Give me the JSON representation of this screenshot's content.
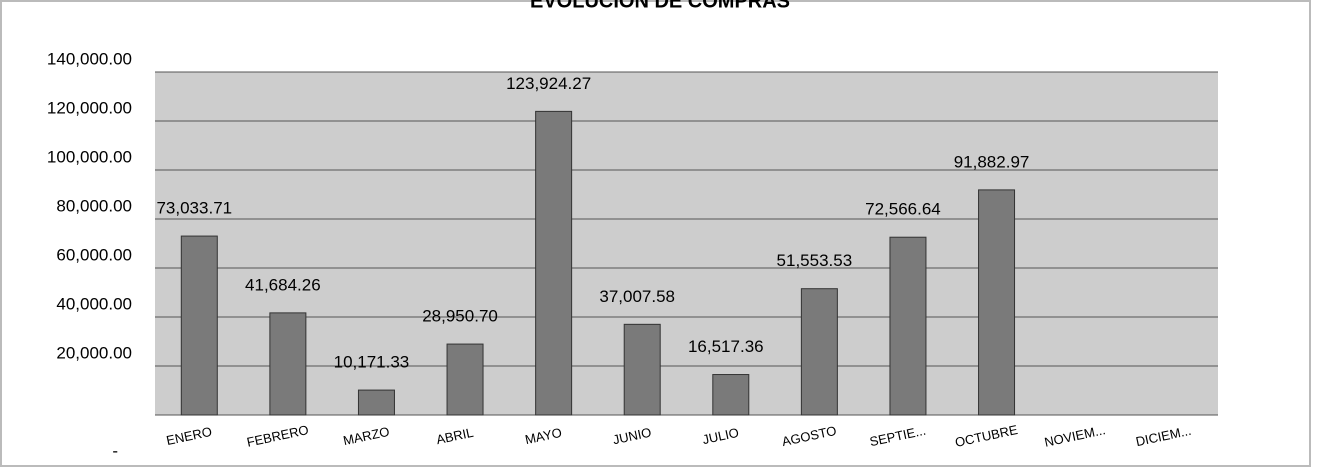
{
  "chart_data": {
    "type": "bar",
    "title": "EVOLUCION DE COMPRAS",
    "categories": [
      "ENERO",
      "FEBRERO",
      "MARZO",
      "ABRIL",
      "MAYO",
      "JUNIO",
      "JULIO",
      "AGOSTO",
      "SEPTIE...",
      "OCTUBRE",
      "NOVIEM...",
      "DICIEM..."
    ],
    "values": [
      73033.71,
      41684.26,
      10171.33,
      28950.7,
      123924.27,
      37007.58,
      16517.36,
      51553.53,
      72566.64,
      91882.97,
      null,
      null
    ],
    "value_labels": [
      "73,033.71",
      "41,684.26",
      "10,171.33",
      "28,950.70",
      "123,924.27",
      "37,007.58",
      "16,517.36",
      "51,553.53",
      "72,566.64",
      "91,882.97",
      null,
      null
    ],
    "color": "#7a7a7a",
    "ylim": [
      0,
      140000
    ],
    "yticks": [
      {
        "value": 0,
        "label": "-"
      },
      {
        "value": 20000,
        "label": "20,000.00"
      },
      {
        "value": 40000,
        "label": "40,000.00"
      },
      {
        "value": 60000,
        "label": "60,000.00"
      },
      {
        "value": 80000,
        "label": "80,000.00"
      },
      {
        "value": 100000,
        "label": "100,000.00"
      },
      {
        "value": 120000,
        "label": "120,000.00"
      },
      {
        "value": 140000,
        "label": "140,000.00"
      }
    ],
    "grid": true
  }
}
